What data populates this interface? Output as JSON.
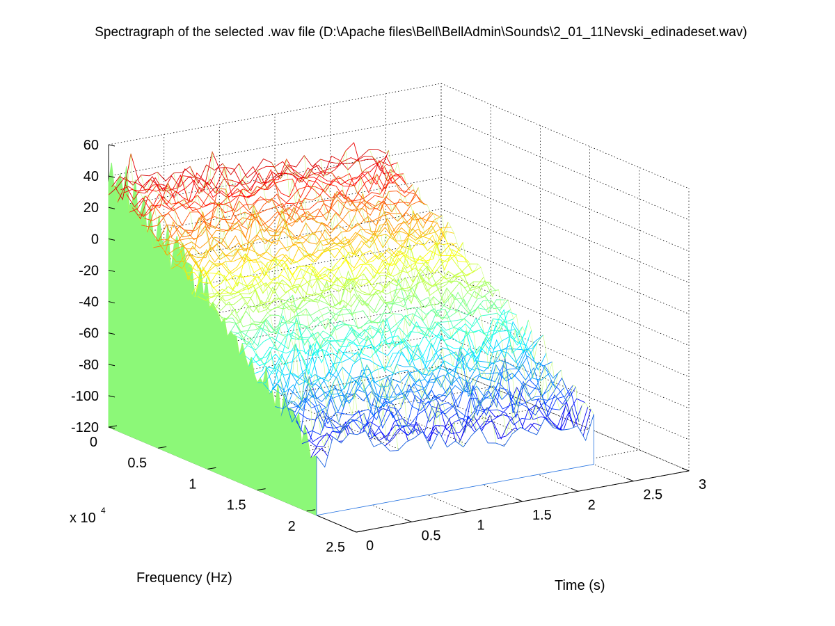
{
  "chart_data": {
    "type": "surface-mesh",
    "title": "Spectragraph of the selected .wav file (D:\\Apache files\\Bell\\BellAdmin\\Sounds\\2_01_11Nevski_edinadeset.wav)",
    "xlabel": "Frequency (Hz)",
    "xlabel_multiplier": "x 10",
    "xlabel_multiplier_exponent": "4",
    "ylabel": "Time (s)",
    "zlabel": "",
    "frequency_axis": {
      "range": [
        0,
        2.5
      ],
      "ticks": [
        "0",
        "0.5",
        "1",
        "1.5",
        "2",
        "2.5"
      ],
      "scale": 10000
    },
    "time_axis": {
      "range": [
        0,
        3
      ],
      "ticks": [
        "0",
        "0.5",
        "1",
        "1.5",
        "2",
        "2.5",
        "3"
      ]
    },
    "magnitude_axis": {
      "range": [
        -120,
        60
      ],
      "ticks": [
        "-120",
        "-100",
        "-80",
        "-60",
        "-40",
        "-20",
        "0",
        "20",
        "40",
        "60"
      ]
    },
    "grid": true,
    "colormap": "jet",
    "profile": {
      "frequency_x1e4": [
        0,
        0.25,
        0.5,
        1.0,
        1.5,
        2.1,
        2.5
      ],
      "magnitude_db": [
        35,
        25,
        10,
        -15,
        -45,
        -80,
        -90
      ]
    },
    "time_extent_s": [
      0,
      2.5
    ],
    "frequency_extent_x1e4": [
      0,
      2.1
    ]
  }
}
